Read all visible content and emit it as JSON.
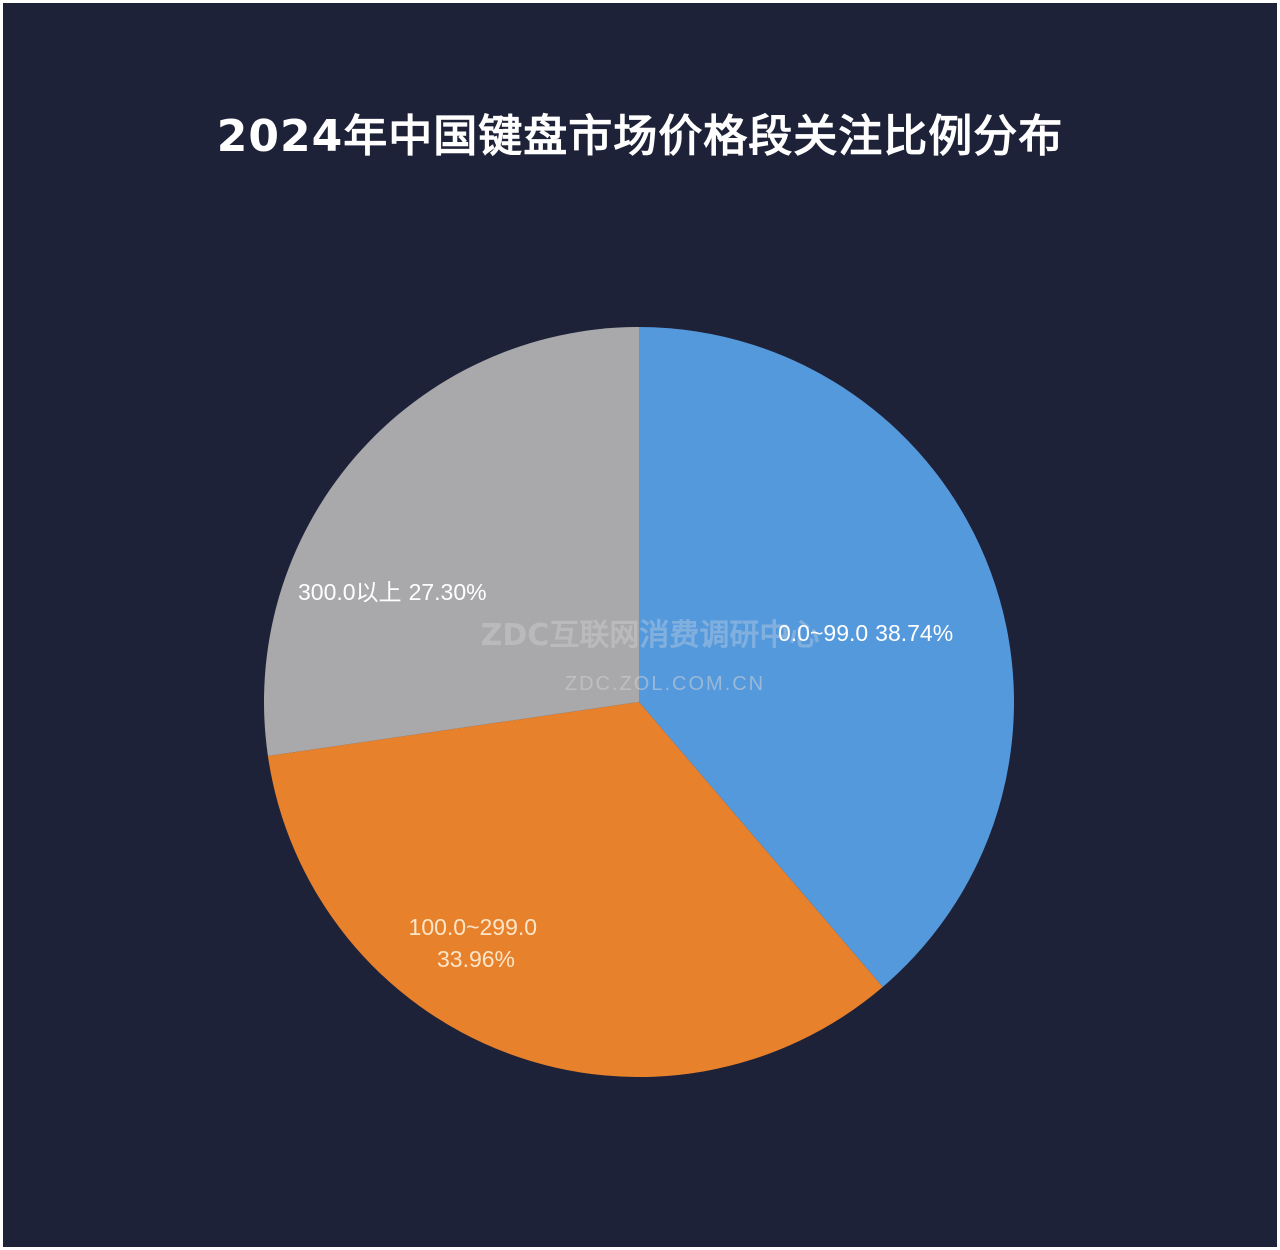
{
  "chart_data": {
    "type": "pie",
    "title": "2024年中国键盘市场价格段关注比例分布",
    "slices": [
      {
        "label": "0.0~99.0",
        "value": 38.74,
        "value_text": "38.74%",
        "color": "#5599dd"
      },
      {
        "label": "100.0~299.0",
        "value": 33.96,
        "value_text": "33.96%",
        "color": "#e8812c"
      },
      {
        "label": "300.0以上",
        "value": 27.3,
        "value_text": "27.30%",
        "color": "#a9a9ab"
      }
    ]
  },
  "watermark": {
    "main": "ZDC互联网消费调研中心",
    "sub": "ZDC.ZOL.COM.CN"
  },
  "colors": {
    "background": "#1e2238",
    "title": "#ffffff"
  }
}
